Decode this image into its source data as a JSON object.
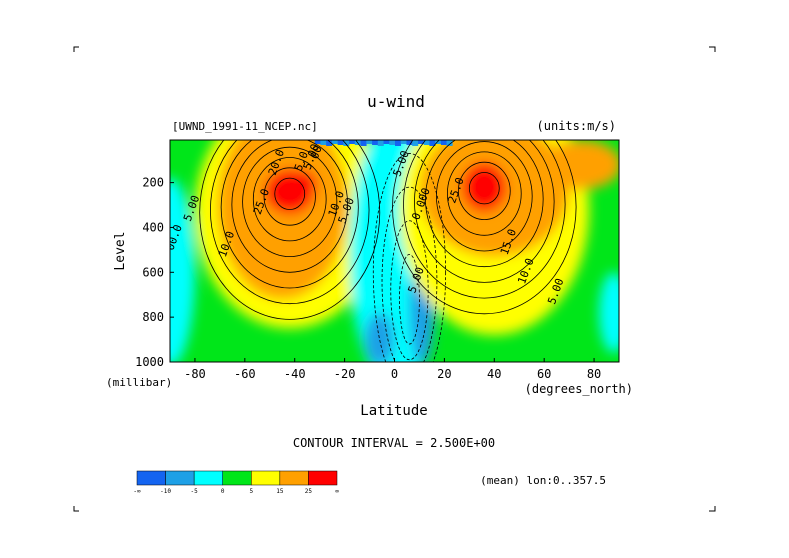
{
  "chart_data": {
    "type": "heatmap",
    "subtype": "filled-contour",
    "title": "u-wind",
    "source_label": "[UWND_1991-11_NCEP.nc]",
    "units_label": "(units:m/s)",
    "xlabel": "Latitude",
    "ylabel": "Level",
    "x_unit_label": "(degrees_north)",
    "y_unit_label": "(millibar)",
    "xlim": [
      -90,
      90
    ],
    "ylim": [
      1000,
      10
    ],
    "x_ticks": [
      -80,
      -60,
      -40,
      -20,
      0,
      20,
      40,
      60,
      80
    ],
    "y_ticks": [
      200,
      400,
      600,
      800,
      1000
    ],
    "contour_interval_text": "CONTOUR INTERVAL = 2.500E+00",
    "mean_text": "(mean) lon:0..357.5",
    "contour_labels": [
      {
        "text": "20.0",
        "lat": -46,
        "level": 115
      },
      {
        "text": "5.0",
        "lat": -36,
        "level": 110
      },
      {
        "text": "5.00",
        "lat": -32,
        "level": 90
      },
      {
        "text": "00",
        "lat": -30,
        "level": 70
      },
      {
        "text": "25.0",
        "lat": -52,
        "level": 290
      },
      {
        "text": "10.0",
        "lat": -22,
        "level": 300
      },
      {
        "text": "5.00",
        "lat": -18,
        "level": 330
      },
      {
        "text": "5.00",
        "lat": -80,
        "level": 320
      },
      {
        "text": "00.0",
        "lat": -87,
        "level": 450
      },
      {
        "text": "10.0",
        "lat": -66,
        "level": 480
      },
      {
        "text": "5.00",
        "lat": 4,
        "level": 120
      },
      {
        "text": "0.000",
        "lat": 12,
        "level": 300
      },
      {
        "text": "5.00",
        "lat": 10,
        "level": 640
      },
      {
        "text": "25.0",
        "lat": 26,
        "level": 240
      },
      {
        "text": "15.0",
        "lat": 47,
        "level": 470
      },
      {
        "text": "10.0",
        "lat": 54,
        "level": 600
      },
      {
        "text": "5.00",
        "lat": 66,
        "level": 690
      }
    ],
    "colorbar": {
      "colors": [
        "#1464f0",
        "#1ea0e6",
        "#00ffff",
        "#00e619",
        "#ffff00",
        "#ffa000",
        "#ff0000"
      ],
      "labels": [
        "-∞",
        "-10",
        "-5",
        "0",
        "5",
        "15",
        "25",
        "∞"
      ]
    },
    "fields": [
      {
        "name": "sh_jet",
        "lat": -40,
        "level": 230,
        "peak": 30
      },
      {
        "name": "nh_jet",
        "lat": 35,
        "level": 220,
        "peak": 32
      },
      {
        "name": "easterlies",
        "lat": 10,
        "level": 700,
        "peak": -14
      }
    ]
  }
}
